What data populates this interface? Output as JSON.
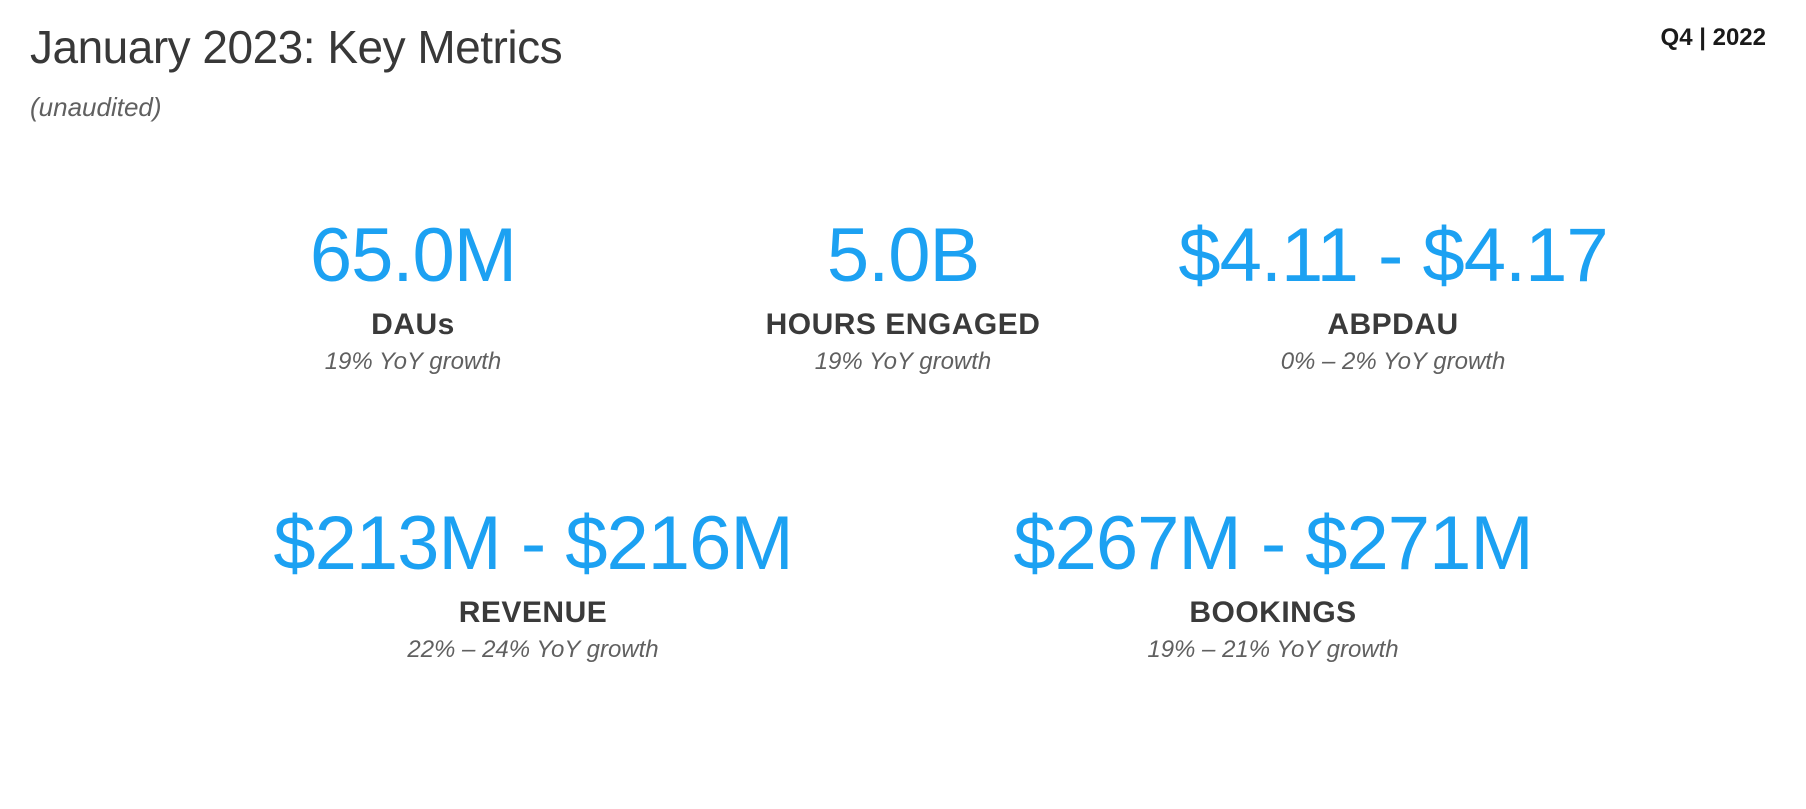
{
  "header": {
    "title": "January 2023: Key Metrics",
    "period": "Q4 | 2022",
    "subtitle": "(unaudited)"
  },
  "colors": {
    "accent": "#1ca1f2",
    "text_dark": "#383838",
    "text_label": "#3a3a3a",
    "text_muted": "#606060",
    "background": "#ffffff"
  },
  "typography": {
    "title_fontsize": 46,
    "subtitle_fontsize": 26,
    "period_fontsize": 24,
    "metric_value_fontsize": 76,
    "metric_label_fontsize": 30,
    "metric_growth_fontsize": 24
  },
  "metrics": {
    "top": [
      {
        "value": "65.0M",
        "label": "DAUs",
        "growth": "19% YoY growth"
      },
      {
        "value": "5.0B",
        "label": "HOURS ENGAGED",
        "growth": "19% YoY growth"
      },
      {
        "value": "$4.11 - $4.17",
        "label": "ABPDAU",
        "growth": "0% – 2% YoY growth"
      }
    ],
    "bottom": [
      {
        "value": "$213M - $216M",
        "label": "REVENUE",
        "growth": "22% – 24% YoY growth"
      },
      {
        "value": "$267M - $271M",
        "label": "BOOKINGS",
        "growth": "19% – 21% YoY growth"
      }
    ]
  }
}
